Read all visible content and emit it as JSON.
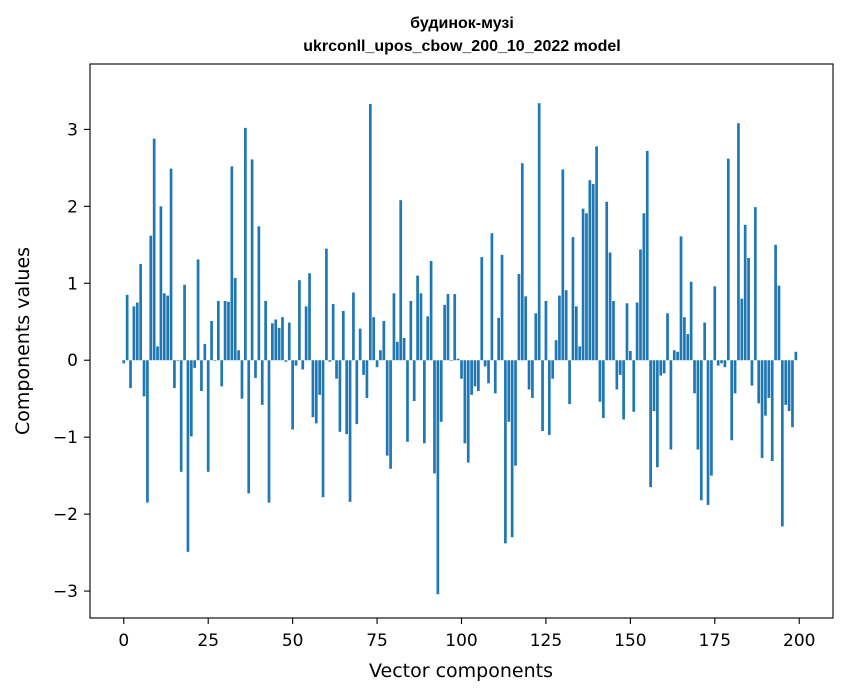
{
  "chart_data": {
    "type": "bar",
    "title": "будинок-музі",
    "subtitle": "ukrconll_upos_cbow_200_10_2022 model",
    "xlabel": "Vector components",
    "ylabel": "Components values",
    "xlim": [
      -10,
      210
    ],
    "ylim": [
      -3.35,
      3.85
    ],
    "xticks": [
      0,
      25,
      50,
      75,
      100,
      125,
      150,
      175,
      200
    ],
    "yticks": [
      -3,
      -2,
      -1,
      0,
      1,
      2,
      3
    ],
    "ytick_labels": [
      "−3",
      "−2",
      "−1",
      "0",
      "1",
      "2",
      "3"
    ],
    "bar_color": "#1f77b4",
    "grid": false,
    "values": [
      -0.04,
      0.85,
      -0.36,
      0.7,
      0.75,
      1.25,
      -0.47,
      -1.85,
      1.62,
      2.88,
      0.18,
      2.0,
      0.87,
      0.84,
      2.49,
      -0.36,
      0.0,
      -1.45,
      0.98,
      -2.49,
      -0.99,
      -0.1,
      1.31,
      -0.4,
      0.21,
      -1.45,
      0.51,
      0.0,
      0.77,
      -0.34,
      0.77,
      0.76,
      2.52,
      1.07,
      0.13,
      -0.5,
      3.02,
      -1.73,
      2.61,
      -0.23,
      1.74,
      -0.58,
      0.77,
      -1.85,
      0.48,
      0.53,
      0.42,
      0.56,
      -0.02,
      0.49,
      -0.9,
      -0.07,
      1.04,
      -0.12,
      0.7,
      1.13,
      -0.74,
      -0.82,
      -0.45,
      -1.78,
      1.45,
      -0.02,
      0.73,
      -0.24,
      -0.93,
      0.64,
      -0.96,
      -1.84,
      0.88,
      -0.83,
      0.41,
      -0.19,
      -0.49,
      3.33,
      0.56,
      -0.09,
      0.13,
      0.51,
      -1.24,
      -1.41,
      0.87,
      0.24,
      2.08,
      0.29,
      -1.06,
      0.77,
      -0.53,
      1.1,
      0.87,
      -1.08,
      0.57,
      1.29,
      -1.47,
      -3.04,
      -0.8,
      0.72,
      0.86,
      0.0,
      0.86,
      0.02,
      -0.24,
      -1.08,
      -1.33,
      -0.45,
      -0.34,
      -0.4,
      1.34,
      -0.08,
      -0.3,
      1.65,
      -0.43,
      0.55,
      1.37,
      -2.38,
      -0.8,
      -2.3,
      -1.37,
      1.12,
      2.56,
      0.83,
      -0.38,
      -0.49,
      0.61,
      3.34,
      -0.92,
      0.77,
      -0.97,
      -0.24,
      0.26,
      0.84,
      2.48,
      0.91,
      -0.57,
      1.6,
      0.7,
      0.18,
      1.97,
      1.91,
      2.34,
      2.29,
      2.78,
      -0.54,
      -0.75,
      2.06,
      1.4,
      0.77,
      -0.38,
      -0.19,
      -0.77,
      0.74,
      0.12,
      -0.67,
      0.75,
      1.44,
      1.91,
      2.72,
      -1.65,
      -0.66,
      -1.39,
      -0.2,
      -0.17,
      0.61,
      -1.16,
      0.13,
      0.11,
      1.61,
      0.56,
      0.34,
      1.02,
      -0.43,
      -1.16,
      -1.82,
      0.49,
      -1.88,
      -1.5,
      0.96,
      -0.07,
      -0.04,
      -0.09,
      2.62,
      -1.04,
      -0.43,
      3.08,
      0.8,
      1.76,
      1.33,
      -0.33,
      1.99,
      -0.56,
      -1.27,
      -0.72,
      -0.49,
      -1.31,
      1.5,
      0.97,
      -2.16,
      -0.58,
      -0.66,
      -0.87,
      0.11
    ]
  }
}
